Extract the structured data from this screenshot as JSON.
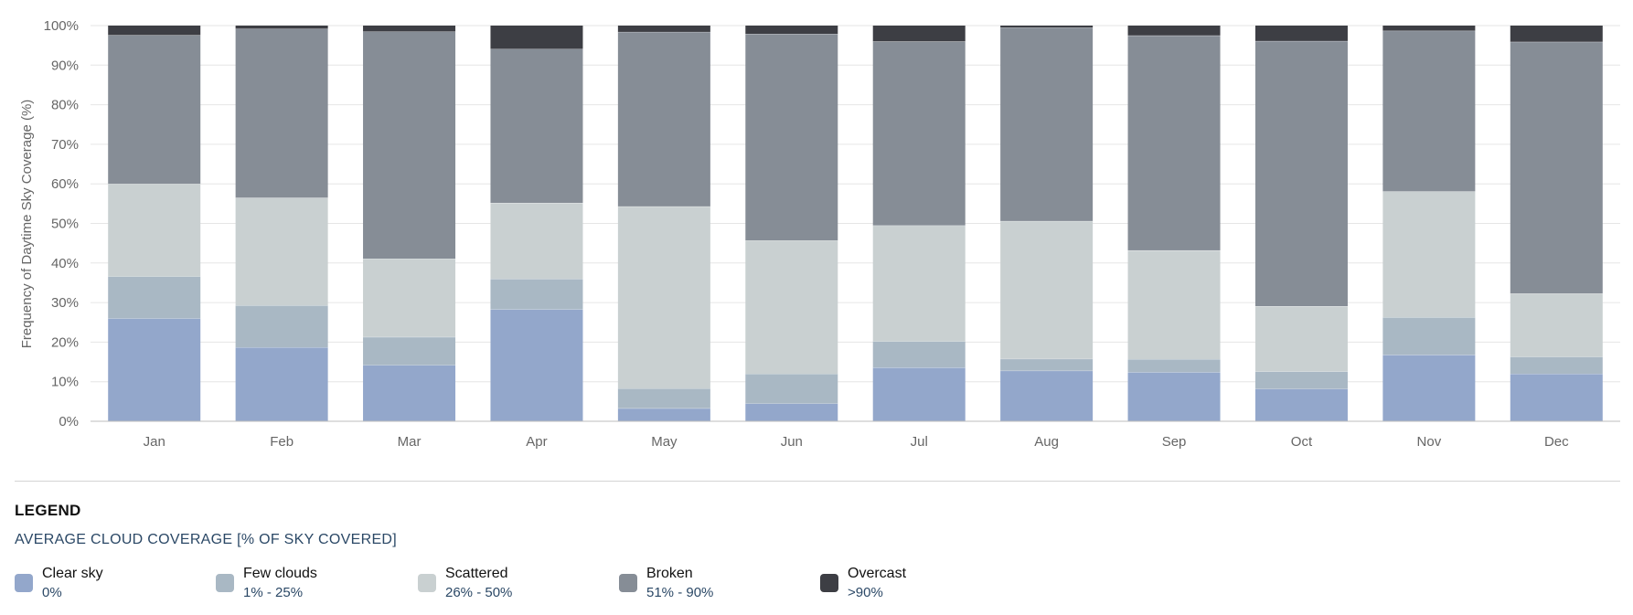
{
  "chart_data": {
    "type": "bar",
    "stacked": true,
    "ylabel": "Frequency of Daytime Sky Coverage (%)",
    "ylim": [
      0,
      100
    ],
    "yticks": [
      "0%",
      "10%",
      "20%",
      "30%",
      "40%",
      "50%",
      "60%",
      "70%",
      "80%",
      "90%",
      "100%"
    ],
    "grid": true,
    "categories": [
      "Jan",
      "Feb",
      "Mar",
      "Apr",
      "May",
      "Jun",
      "Jul",
      "Aug",
      "Sep",
      "Oct",
      "Nov",
      "Dec"
    ],
    "series": [
      {
        "name": "Clear sky",
        "color": "#93a7cb",
        "values": [
          26,
          18.7,
          14.2,
          28.3,
          3.3,
          4.5,
          13.6,
          12.8,
          12.4,
          8.2,
          16.8,
          12
        ]
      },
      {
        "name": "Few clouds",
        "color": "#a9b8c4",
        "values": [
          10.6,
          10.6,
          7.1,
          7.7,
          5,
          7.5,
          6.6,
          3,
          3.3,
          4.4,
          9.5,
          4.3
        ]
      },
      {
        "name": "Scattered",
        "color": "#c9d0d1",
        "values": [
          23.4,
          27.2,
          19.8,
          19.2,
          46,
          33.7,
          29.3,
          34.8,
          27.5,
          16.5,
          31.8,
          16
        ]
      },
      {
        "name": "Broken",
        "color": "#868d96",
        "values": [
          37.6,
          42.7,
          57.4,
          38.9,
          44.1,
          52.2,
          46.5,
          48.9,
          54.3,
          67,
          40.6,
          63.6
        ]
      },
      {
        "name": "Overcast",
        "color": "#3d3e44",
        "values": [
          2.4,
          0.8,
          1.5,
          5.9,
          1.6,
          2.1,
          4,
          0.5,
          2.5,
          3.9,
          1.3,
          4.1
        ]
      }
    ]
  },
  "legend": {
    "title": "LEGEND",
    "subtitle": "AVERAGE CLOUD COVERAGE [% OF SKY COVERED]",
    "items": [
      {
        "name": "Clear sky",
        "range": "0%",
        "color": "#93a7cb"
      },
      {
        "name": "Few clouds",
        "range": "1% - 25%",
        "color": "#a9b8c4"
      },
      {
        "name": "Scattered",
        "range": "26% - 50%",
        "color": "#c9d0d1"
      },
      {
        "name": "Broken",
        "range": "51% - 90%",
        "color": "#868d96"
      },
      {
        "name": "Overcast",
        "range": ">90%",
        "color": "#3d3e44"
      }
    ]
  }
}
